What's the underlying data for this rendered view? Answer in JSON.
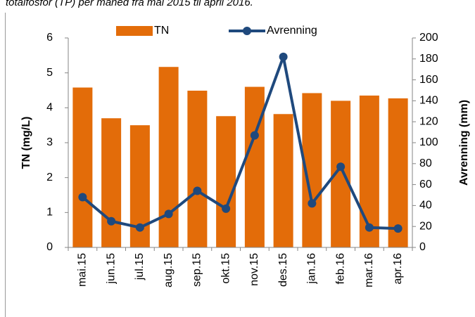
{
  "chart_data": {
    "type": "bar",
    "title": "totalfosfor (TP) per måned fra mai 2015 til april 2016.",
    "categories": [
      "mai.15",
      "jun.15",
      "jul.15",
      "aug.15",
      "sep.15",
      "okt.15",
      "nov.15",
      "des.15",
      "jan.16",
      "feb.16",
      "mar.16",
      "apr.16"
    ],
    "series": [
      {
        "name": "TN",
        "type": "bar",
        "axis": "y",
        "color": "#e36c09",
        "values": [
          4.58,
          3.7,
          3.5,
          5.17,
          4.49,
          3.76,
          4.6,
          3.82,
          4.42,
          4.2,
          4.35,
          4.27
        ]
      },
      {
        "name": "Avrenning",
        "type": "line",
        "axis": "y2",
        "color": "#1f497d",
        "values": [
          48,
          25,
          19,
          32,
          54,
          37,
          107,
          182,
          42,
          77,
          19,
          18
        ]
      }
    ],
    "ylabel": "TN (mg/L)",
    "y2label": "Avrenning (mm)",
    "ylim": [
      0,
      6
    ],
    "yticks": [
      0,
      1,
      2,
      3,
      4,
      5,
      6
    ],
    "y2lim": [
      0,
      200
    ],
    "y2ticks": [
      0,
      20,
      40,
      60,
      80,
      100,
      120,
      140,
      160,
      180,
      200
    ],
    "legend": "top"
  }
}
